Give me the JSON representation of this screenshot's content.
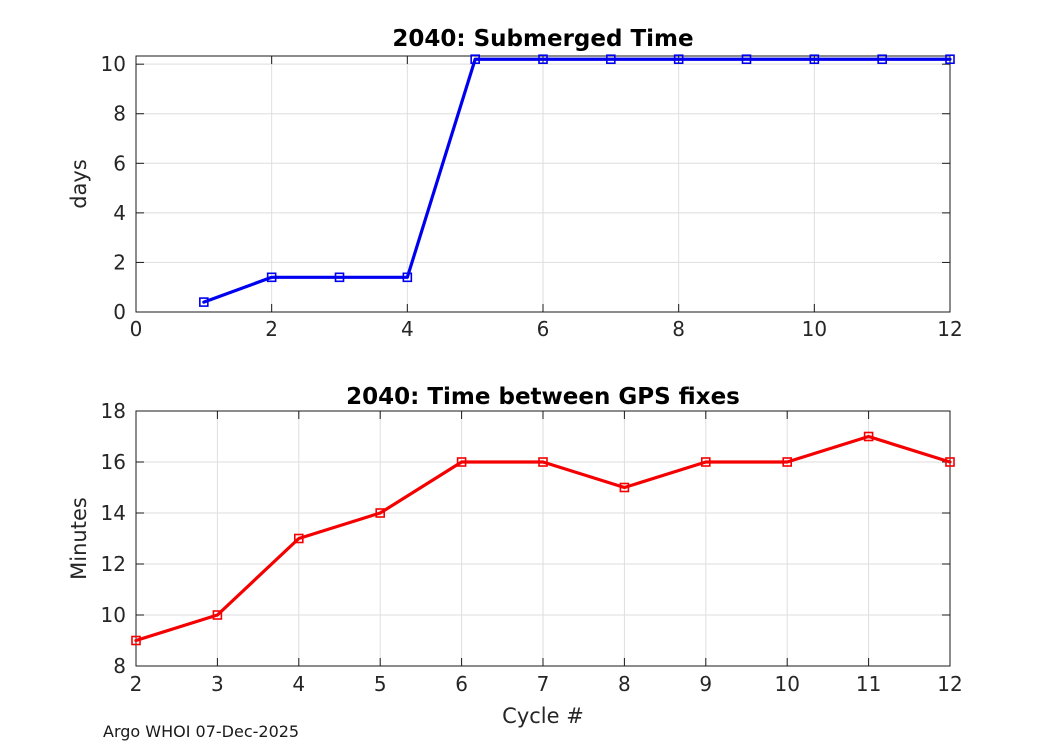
{
  "figure": {
    "background": "#ffffff"
  },
  "footer": {
    "text": "Argo WHOI 07-Dec-2025"
  },
  "colors": {
    "axis": "#1a1a1a",
    "tick_label": "#262626",
    "grid": "#dedede",
    "blue_series": "#0000f0",
    "red_series": "#f50000"
  },
  "chart_data": [
    {
      "type": "line",
      "title": "2040: Submerged Time",
      "xlabel": "",
      "ylabel": "days",
      "grid": true,
      "legend": "none",
      "xlim": [
        0,
        12
      ],
      "ylim": [
        0,
        10.33
      ],
      "xticks": [
        0,
        2,
        4,
        6,
        8,
        10,
        12
      ],
      "yticks": [
        0,
        2,
        4,
        6,
        8,
        10
      ],
      "series": [
        {
          "name": "submerged-time-days",
          "color": "#0000f0",
          "marker": "square",
          "x": [
            1,
            2,
            3,
            4,
            5,
            6,
            7,
            8,
            9,
            10,
            11,
            12
          ],
          "values": [
            0.4,
            1.4,
            1.4,
            1.4,
            10.2,
            10.2,
            10.2,
            10.2,
            10.2,
            10.2,
            10.2,
            10.2
          ]
        }
      ]
    },
    {
      "type": "line",
      "title": "2040: Time between GPS fixes",
      "xlabel": "Cycle #",
      "ylabel": "Minutes",
      "grid": true,
      "legend": "none",
      "xlim": [
        2,
        12
      ],
      "ylim": [
        8,
        18
      ],
      "xticks": [
        2,
        3,
        4,
        5,
        6,
        7,
        8,
        9,
        10,
        11,
        12
      ],
      "yticks": [
        8,
        10,
        12,
        14,
        16,
        18
      ],
      "series": [
        {
          "name": "gps-fix-interval-minutes",
          "color": "#f50000",
          "marker": "square",
          "x": [
            2,
            3,
            4,
            5,
            6,
            7,
            8,
            9,
            10,
            11,
            12
          ],
          "values": [
            9,
            10,
            13,
            14,
            16,
            16,
            15,
            16,
            16,
            17,
            16
          ]
        }
      ]
    }
  ]
}
